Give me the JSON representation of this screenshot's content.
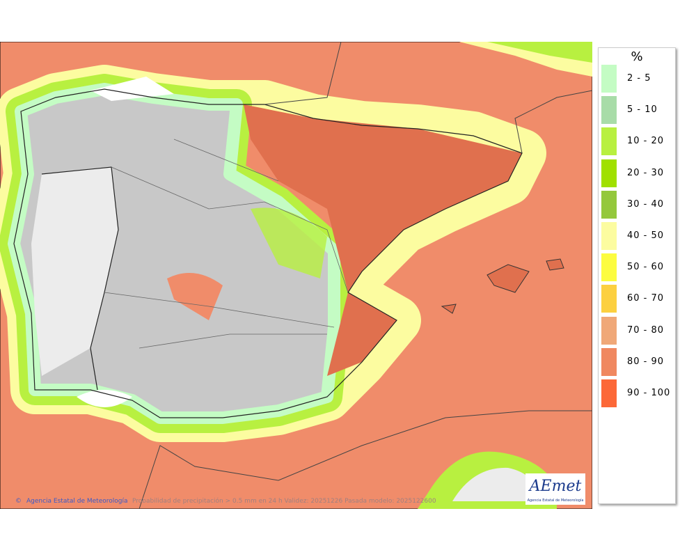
{
  "legend": {
    "title": "%",
    "items": [
      {
        "label": "2 - 5",
        "color": "#c4fcc4"
      },
      {
        "label": "5 - 10",
        "color": "#a8dca8"
      },
      {
        "label": "10 - 20",
        "color": "#b8f040"
      },
      {
        "label": "20 - 30",
        "color": "#a0e000"
      },
      {
        "label": "30 - 40",
        "color": "#94c83c"
      },
      {
        "label": "40 - 50",
        "color": "#fcfca0"
      },
      {
        "label": "50 - 60",
        "color": "#fcfc40"
      },
      {
        "label": "60 - 70",
        "color": "#fcd040"
      },
      {
        "label": "70 - 80",
        "color": "#f0a878"
      },
      {
        "label": "80 - 90",
        "color": "#f08860"
      },
      {
        "label": "90 - 100",
        "color": "#fc6838"
      }
    ]
  },
  "footer": {
    "credit": "Agencia Estatal de Meteorología",
    "caption": "Probabilidad de precipitación > 0.5 mm en 24 h Validez: 20251226 Pasada modelo: 2025122600"
  },
  "logo": {
    "name": "AEmet",
    "subtitle": "Agencia Estatal de Meteorología"
  }
}
